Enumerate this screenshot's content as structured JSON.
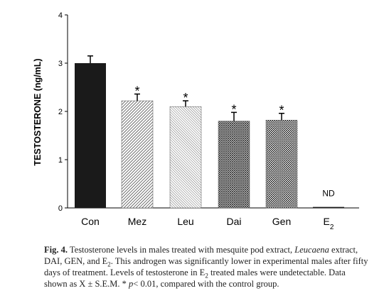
{
  "chart_data": {
    "type": "bar",
    "ylabel": "TESTOSTERONE (ng/mL)",
    "xlabel": "",
    "ylim": [
      0,
      4
    ],
    "yticks": [
      0,
      1,
      2,
      3,
      4
    ],
    "categories": [
      "Con",
      "Mez",
      "Leu",
      "Dai",
      "Gen",
      "E2"
    ],
    "category_labels": [
      {
        "main": "Con",
        "sub": ""
      },
      {
        "main": "Mez",
        "sub": ""
      },
      {
        "main": "Leu",
        "sub": ""
      },
      {
        "main": "Dai",
        "sub": ""
      },
      {
        "main": "Gen",
        "sub": ""
      },
      {
        "main": "E",
        "sub": "2"
      }
    ],
    "values": [
      3.0,
      2.22,
      2.1,
      1.8,
      1.82,
      0.02
    ],
    "sem": [
      0.15,
      0.14,
      0.12,
      0.18,
      0.14,
      0.02
    ],
    "annotations": [
      "",
      "*",
      "*",
      "*",
      "*",
      "ND"
    ],
    "fills": [
      "solid",
      "diagonal-dense",
      "diagonal-fine",
      "crosshatch",
      "dots",
      "solid"
    ],
    "colors": {
      "bar": "#1a1a1a",
      "pattern": "#333333"
    },
    "grid": false
  },
  "caption": {
    "label": "Fig. 4.",
    "t1": " Testosterone levels in males treated with mesquite pod extract, ",
    "leucaena": "Leucaena",
    "t2": " extract, DAI, GEN, and E",
    "sub1": "2",
    "t3": ". This androgen was significantly lower in experimental males after fifty days of treatment. Levels of testosterone in E",
    "sub2": "2",
    "t4": " treated males were undetectable. Data shown as X ± S.E.M. * ",
    "p": "p",
    "t5": "< 0.01, compared with the control group."
  }
}
